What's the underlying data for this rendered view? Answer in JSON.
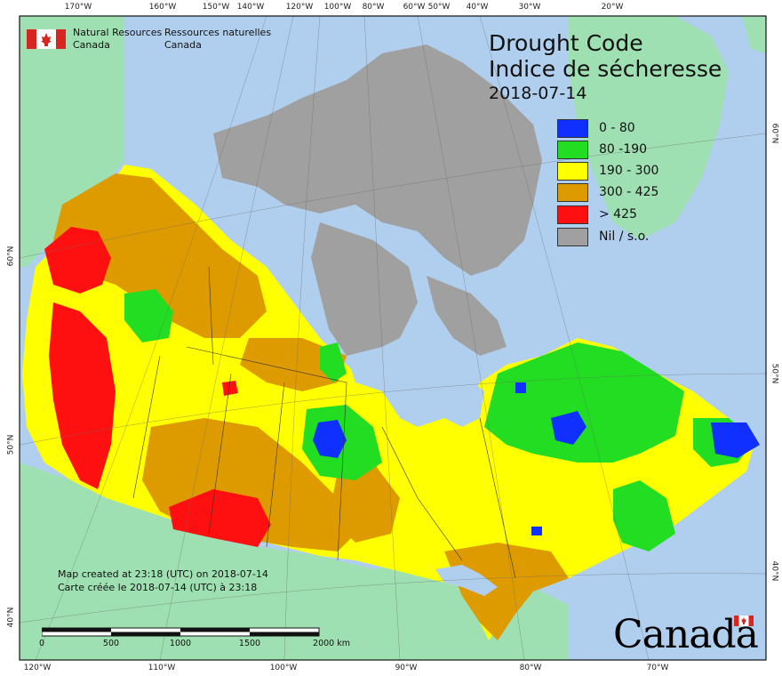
{
  "title": {
    "line1": "Drought Code",
    "line2": "Indice de sécheresse",
    "date": "2018-07-14"
  },
  "agency": {
    "en_line1": "Natural Resources",
    "en_line2": "Canada",
    "fr_line1": "Ressources naturelles",
    "fr_line2": "Canada"
  },
  "legend": [
    {
      "label": "0 - 80",
      "color": "#1030ff"
    },
    {
      "label": "80 -190",
      "color": "#22dd22"
    },
    {
      "label": "190 - 300",
      "color": "#ffff00"
    },
    {
      "label": "300 - 425",
      "color": "#dd9b00"
    },
    {
      "label": "> 425",
      "color": "#ff1010"
    },
    {
      "label": "Nil / s.o.",
      "color": "#a0a0a0"
    }
  ],
  "credit": {
    "en": "Map created at 23:18 (UTC) on 2018-07-14",
    "fr": "Carte créée le 2018-07-14 (UTC) à 23:18"
  },
  "scalebar": {
    "labels": [
      "0",
      "500",
      "1000",
      "1500",
      "2000 km"
    ]
  },
  "wordmark": "Canada",
  "graticule": {
    "top_longitudes": [
      "170°W",
      "160°W",
      "150°W",
      "140°W",
      "120°W",
      "100°W",
      "80°W",
      "60°W",
      "50°W",
      "40°W",
      "30°W",
      "20°W"
    ],
    "bottom_longitudes": [
      "120°W",
      "110°W",
      "100°W",
      "90°W",
      "80°W",
      "70°W"
    ],
    "left_latitudes": [
      "60°N",
      "50°N",
      "40°N"
    ],
    "right_latitudes": [
      "60°N",
      "50°N",
      "40°N"
    ]
  },
  "colors": {
    "ocean": "#b0cfee",
    "land_other": "#9ee0b2",
    "frame": "#111111"
  }
}
